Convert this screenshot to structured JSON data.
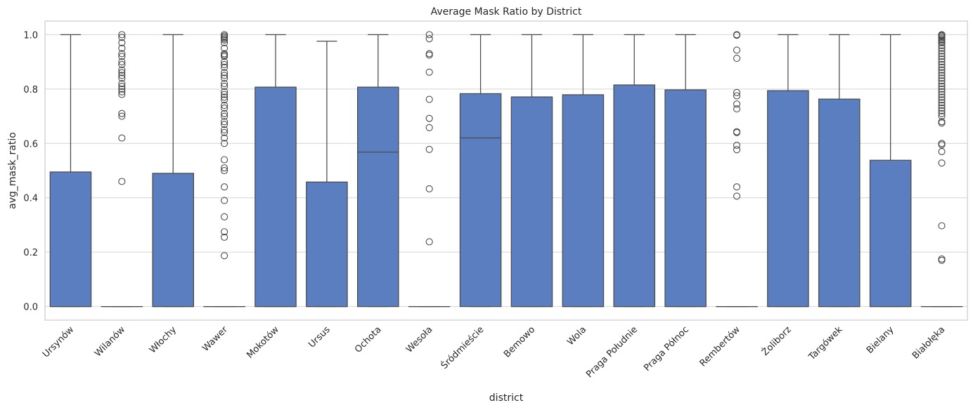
{
  "chart_data": {
    "type": "box",
    "title": "Average Mask Ratio by District",
    "xlabel": "district",
    "ylabel": "avg_mask_ratio",
    "ylim": [
      -0.05,
      1.05
    ],
    "yticks": [
      0.0,
      0.2,
      0.4,
      0.6,
      0.8,
      1.0
    ],
    "ytick_labels": [
      "0.0",
      "0.2",
      "0.4",
      "0.6",
      "0.8",
      "1.0"
    ],
    "grid": true,
    "box_color": "#5a7ec0",
    "line_color": "#4a4a4a",
    "categories": [
      "Ursynów",
      "Wilanów",
      "Włochy",
      "Wawer",
      "Mokotów",
      "Ursus",
      "Ochota",
      "Wesoła",
      "Śródmieście",
      "Bemowo",
      "Wola",
      "Praga Południe",
      "Praga Północ",
      "Rembertów",
      "Żoliborz",
      "Targówek",
      "Bielany",
      "Białołęka"
    ],
    "boxes": [
      {
        "category": "Ursynów",
        "whisker_low": 0.0,
        "q1": 0.0,
        "median": 0.0,
        "q3": 0.495,
        "whisker_high": 1.0,
        "outliers": []
      },
      {
        "category": "Wilanów",
        "whisker_low": 0.0,
        "q1": 0.0,
        "median": 0.0,
        "q3": 0.0,
        "whisker_high": 0.0,
        "outliers": [
          1.0,
          0.99,
          0.97,
          0.95,
          0.93,
          0.92,
          0.9,
          0.89,
          0.87,
          0.86,
          0.85,
          0.84,
          0.82,
          0.81,
          0.8,
          0.79,
          0.78,
          0.71,
          0.7,
          0.62,
          0.46
        ]
      },
      {
        "category": "Włochy",
        "whisker_low": 0.0,
        "q1": 0.0,
        "median": 0.0,
        "q3": 0.49,
        "whisker_high": 1.0,
        "outliers": []
      },
      {
        "category": "Wawer",
        "whisker_low": 0.0,
        "q1": 0.0,
        "median": 0.0,
        "q3": 0.0,
        "whisker_high": 0.0,
        "outliers": [
          1.0,
          0.995,
          0.99,
          0.985,
          0.98,
          0.97,
          0.95,
          0.93,
          0.925,
          0.92,
          0.9,
          0.89,
          0.88,
          0.86,
          0.85,
          0.84,
          0.82,
          0.81,
          0.79,
          0.78,
          0.77,
          0.76,
          0.74,
          0.73,
          0.71,
          0.7,
          0.68,
          0.67,
          0.65,
          0.64,
          0.62,
          0.6,
          0.54,
          0.51,
          0.5,
          0.44,
          0.39,
          0.33,
          0.275,
          0.255,
          0.187
        ]
      },
      {
        "category": "Mokotów",
        "whisker_low": 0.0,
        "q1": 0.0,
        "median": 0.0,
        "q3": 0.807,
        "whisker_high": 1.0,
        "outliers": []
      },
      {
        "category": "Ursus",
        "whisker_low": 0.0,
        "q1": 0.0,
        "median": 0.0,
        "q3": 0.458,
        "whisker_high": 0.976,
        "outliers": []
      },
      {
        "category": "Ochota",
        "whisker_low": 0.0,
        "q1": 0.0,
        "median": 0.568,
        "q3": 0.807,
        "whisker_high": 1.0,
        "outliers": []
      },
      {
        "category": "Wesoła",
        "whisker_low": 0.0,
        "q1": 0.0,
        "median": 0.0,
        "q3": 0.0,
        "whisker_high": 0.0,
        "outliers": [
          1.0,
          0.985,
          0.93,
          0.925,
          0.862,
          0.762,
          0.692,
          0.658,
          0.578,
          0.433,
          0.238
        ]
      },
      {
        "category": "Śródmieście",
        "whisker_low": 0.0,
        "q1": 0.0,
        "median": 0.62,
        "q3": 0.783,
        "whisker_high": 1.0,
        "outliers": []
      },
      {
        "category": "Bemowo",
        "whisker_low": 0.0,
        "q1": 0.0,
        "median": 0.0,
        "q3": 0.771,
        "whisker_high": 1.0,
        "outliers": []
      },
      {
        "category": "Wola",
        "whisker_low": 0.0,
        "q1": 0.0,
        "median": 0.0,
        "q3": 0.779,
        "whisker_high": 1.0,
        "outliers": []
      },
      {
        "category": "Praga Południe",
        "whisker_low": 0.0,
        "q1": 0.0,
        "median": 0.0,
        "q3": 0.815,
        "whisker_high": 1.0,
        "outliers": []
      },
      {
        "category": "Praga Północ",
        "whisker_low": 0.0,
        "q1": 0.0,
        "median": 0.0,
        "q3": 0.797,
        "whisker_high": 1.0,
        "outliers": []
      },
      {
        "category": "Rembertów",
        "whisker_low": 0.0,
        "q1": 0.0,
        "median": 0.0,
        "q3": 0.0,
        "whisker_high": 0.0,
        "outliers": [
          1.0,
          0.998,
          0.943,
          0.913,
          0.787,
          0.775,
          0.745,
          0.727,
          0.643,
          0.64,
          0.593,
          0.577,
          0.44,
          0.406
        ]
      },
      {
        "category": "Żoliborz",
        "whisker_low": 0.0,
        "q1": 0.0,
        "median": 0.0,
        "q3": 0.794,
        "whisker_high": 1.0,
        "outliers": []
      },
      {
        "category": "Targówek",
        "whisker_low": 0.0,
        "q1": 0.0,
        "median": 0.0,
        "q3": 0.763,
        "whisker_high": 1.0,
        "outliers": []
      },
      {
        "category": "Bielany",
        "whisker_low": 0.0,
        "q1": 0.0,
        "median": 0.0,
        "q3": 0.538,
        "whisker_high": 1.0,
        "outliers": []
      },
      {
        "category": "Białołęka",
        "whisker_low": 0.0,
        "q1": 0.0,
        "median": 0.0,
        "q3": 0.0,
        "whisker_high": 0.0,
        "outliers": [
          1.0,
          0.998,
          0.995,
          0.99,
          0.985,
          0.98,
          0.975,
          0.97,
          0.96,
          0.95,
          0.94,
          0.93,
          0.92,
          0.91,
          0.9,
          0.89,
          0.88,
          0.87,
          0.86,
          0.85,
          0.84,
          0.83,
          0.82,
          0.81,
          0.8,
          0.79,
          0.78,
          0.77,
          0.76,
          0.75,
          0.74,
          0.73,
          0.72,
          0.71,
          0.7,
          0.68,
          0.675,
          0.6,
          0.595,
          0.57,
          0.528,
          0.297,
          0.175,
          0.17
        ]
      }
    ]
  }
}
